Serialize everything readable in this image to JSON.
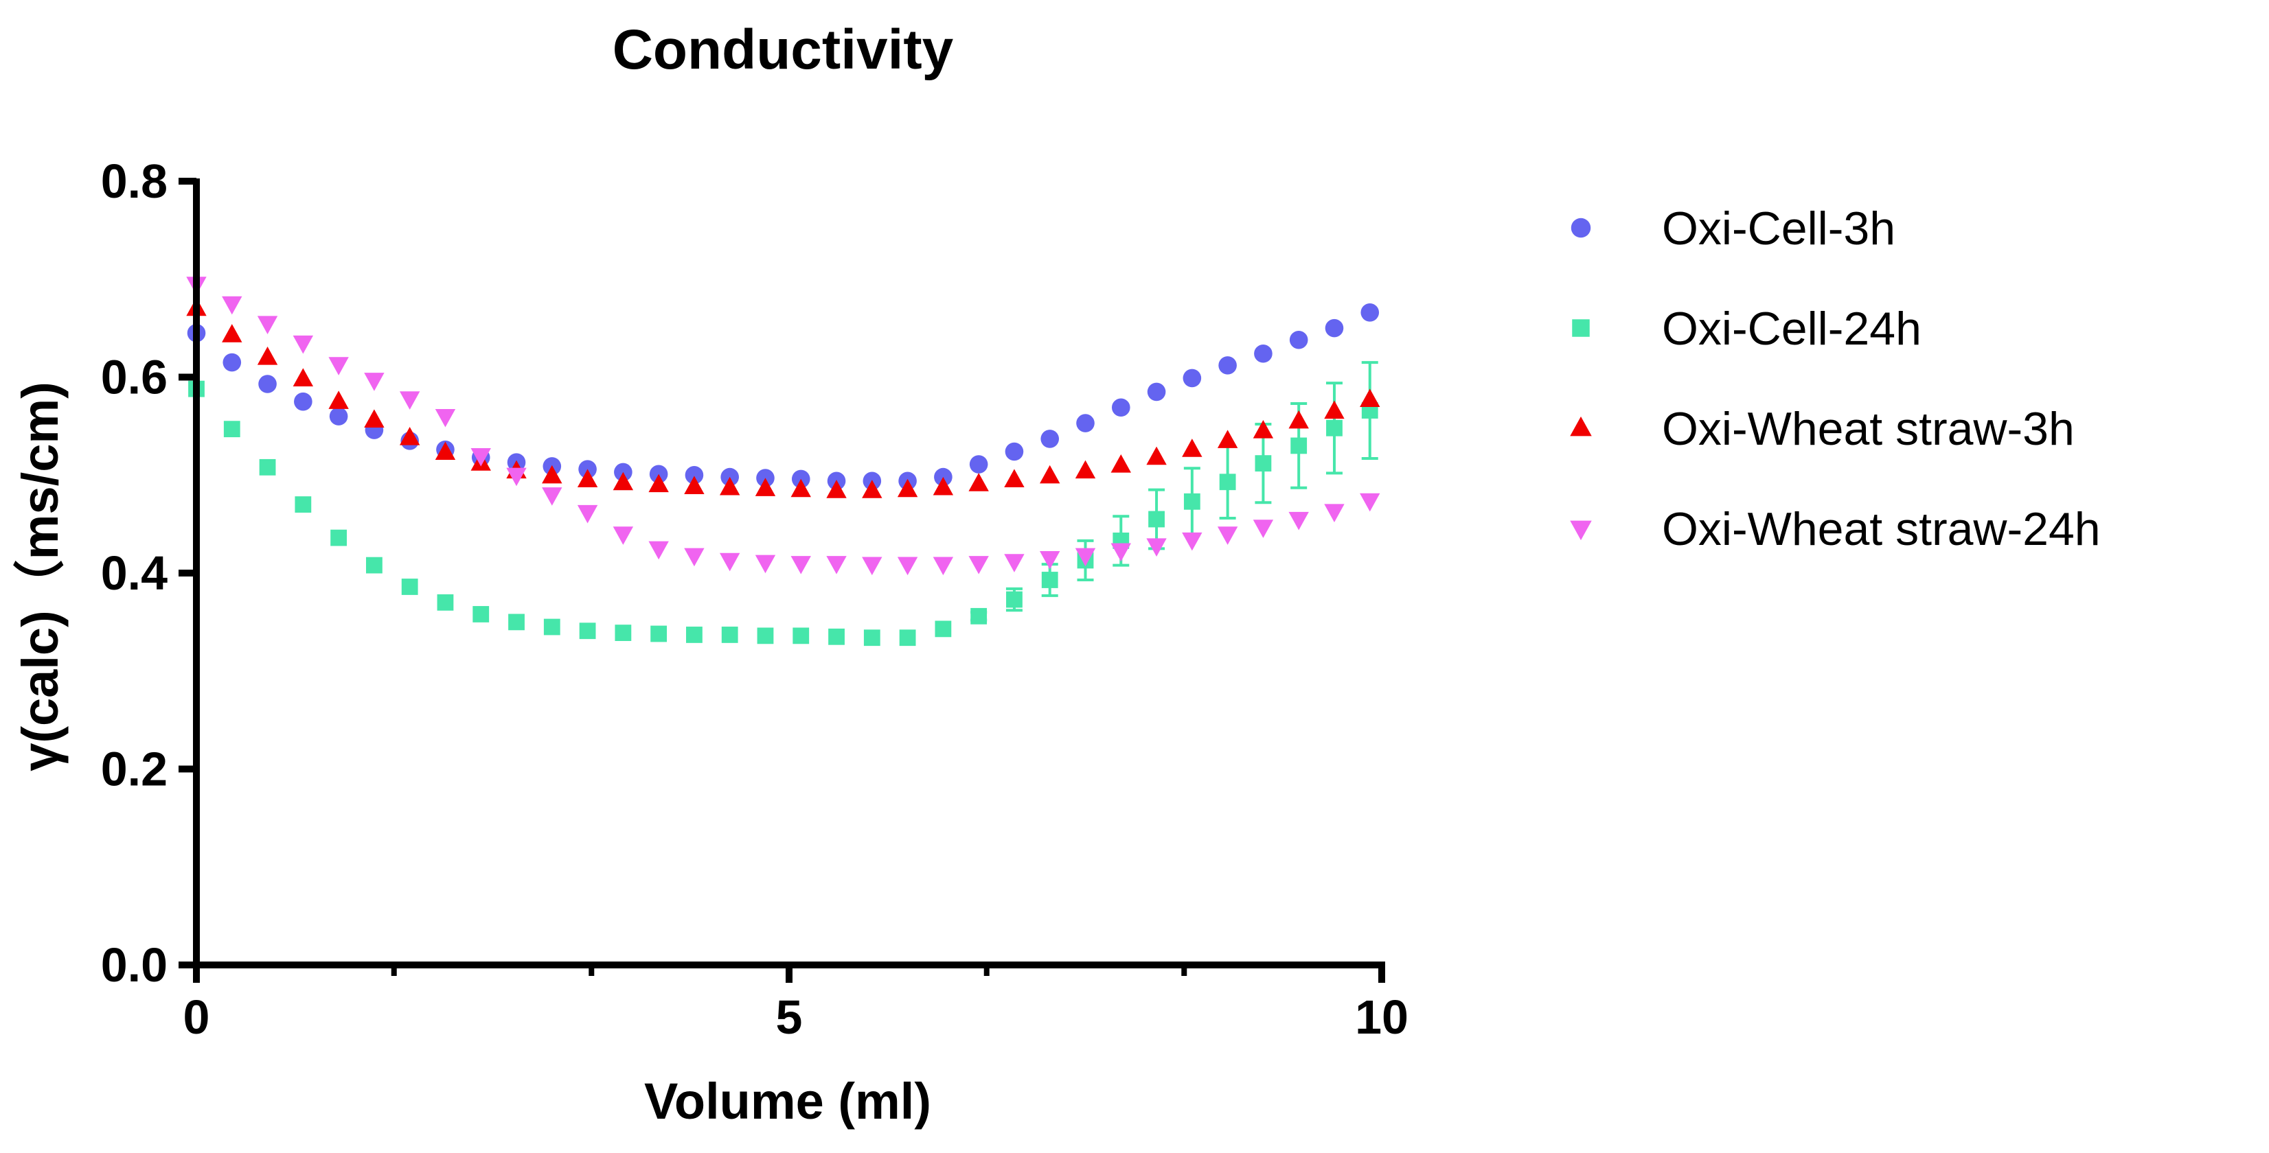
{
  "chart_data": {
    "type": "scatter",
    "title": "Conductivity",
    "xlabel": "Volume (ml)",
    "ylabel": "γ(calc)（ms/cm)",
    "xlim": [
      0,
      10
    ],
    "ylim": [
      0,
      0.8
    ],
    "xticks": [
      0,
      5,
      10
    ],
    "xtick_labels": [
      "0",
      "5",
      "10"
    ],
    "x_minor_ticks": [
      1.667,
      3.333,
      6.667,
      8.333
    ],
    "yticks": [
      0,
      0.2,
      0.4,
      0.6,
      0.8
    ],
    "ytick_labels": [
      "0.0",
      "0.2",
      "0.4",
      "0.6",
      "0.8"
    ],
    "grid": false,
    "legend_position": "right",
    "x": [
      0,
      0.3,
      0.6,
      0.9,
      1.2,
      1.5,
      1.8,
      2.1,
      2.4,
      2.7,
      3.0,
      3.3,
      3.6,
      3.9,
      4.2,
      4.5,
      4.8,
      5.1,
      5.4,
      5.7,
      6.0,
      6.3,
      6.6,
      6.9,
      7.2,
      7.5,
      7.8,
      8.1,
      8.4,
      8.7,
      9.0,
      9.3,
      9.6,
      9.9
    ],
    "series": [
      {
        "name": "Oxi-Cell-3h",
        "marker": "circle",
        "color": "#6464f0",
        "y": [
          0.645,
          0.615,
          0.593,
          0.575,
          0.56,
          0.546,
          0.535,
          0.526,
          0.518,
          0.513,
          0.509,
          0.506,
          0.503,
          0.501,
          0.5,
          0.498,
          0.497,
          0.496,
          0.494,
          0.494,
          0.494,
          0.498,
          0.511,
          0.524,
          0.537,
          0.553,
          0.569,
          0.585,
          0.599,
          0.612,
          0.624,
          0.638,
          0.65,
          0.666
        ]
      },
      {
        "name": "Oxi-Cell-24h",
        "marker": "square",
        "color": "#46e6aa",
        "y": [
          0.588,
          0.547,
          0.508,
          0.47,
          0.436,
          0.408,
          0.386,
          0.37,
          0.358,
          0.35,
          0.345,
          0.341,
          0.339,
          0.338,
          0.337,
          0.337,
          0.336,
          0.336,
          0.335,
          0.334,
          0.334,
          0.343,
          0.356,
          0.373,
          0.393,
          0.413,
          0.433,
          0.455,
          0.473,
          0.493,
          0.512,
          0.53,
          0.548,
          0.566
        ],
        "error": [
          0,
          0,
          0,
          0,
          0,
          0,
          0,
          0,
          0,
          0,
          0,
          0,
          0,
          0,
          0,
          0,
          0,
          0,
          0,
          0,
          0,
          0,
          0.004,
          0.011,
          0.016,
          0.02,
          0.025,
          0.03,
          0.034,
          0.037,
          0.04,
          0.043,
          0.046,
          0.049
        ]
      },
      {
        "name": "Oxi-Wheat straw-3h",
        "marker": "triangle-up",
        "color": "#f00000",
        "y": [
          0.67,
          0.643,
          0.62,
          0.598,
          0.575,
          0.556,
          0.538,
          0.523,
          0.512,
          0.504,
          0.499,
          0.495,
          0.492,
          0.49,
          0.488,
          0.487,
          0.486,
          0.485,
          0.484,
          0.484,
          0.485,
          0.487,
          0.491,
          0.495,
          0.499,
          0.504,
          0.51,
          0.518,
          0.526,
          0.535,
          0.545,
          0.555,
          0.565,
          0.577
        ]
      },
      {
        "name": "Oxi-Wheat straw-24h",
        "marker": "triangle-down",
        "color": "#f064f0",
        "y": [
          0.695,
          0.675,
          0.655,
          0.635,
          0.613,
          0.597,
          0.578,
          0.56,
          0.52,
          0.5,
          0.48,
          0.462,
          0.44,
          0.425,
          0.418,
          0.413,
          0.411,
          0.41,
          0.41,
          0.409,
          0.409,
          0.409,
          0.41,
          0.412,
          0.415,
          0.418,
          0.423,
          0.428,
          0.434,
          0.44,
          0.447,
          0.455,
          0.463,
          0.474
        ]
      }
    ]
  }
}
